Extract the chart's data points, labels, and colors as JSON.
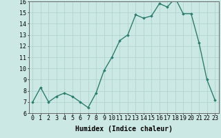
{
  "x": [
    0,
    1,
    2,
    3,
    4,
    5,
    6,
    7,
    8,
    9,
    10,
    11,
    12,
    13,
    14,
    15,
    16,
    17,
    18,
    19,
    20,
    21,
    22,
    23
  ],
  "y": [
    7.0,
    8.3,
    7.0,
    7.5,
    7.8,
    7.5,
    7.0,
    6.5,
    7.8,
    9.8,
    11.0,
    12.5,
    13.0,
    14.8,
    14.5,
    14.7,
    15.8,
    15.5,
    16.3,
    14.9,
    14.9,
    12.3,
    9.0,
    7.2
  ],
  "xlabel": "Humidex (Indice chaleur)",
  "ylim": [
    6,
    16
  ],
  "yticks": [
    6,
    7,
    8,
    9,
    10,
    11,
    12,
    13,
    14,
    15,
    16
  ],
  "xticks": [
    0,
    1,
    2,
    3,
    4,
    5,
    6,
    7,
    8,
    9,
    10,
    11,
    12,
    13,
    14,
    15,
    16,
    17,
    18,
    19,
    20,
    21,
    22,
    23
  ],
  "line_color": "#2d7d6e",
  "marker": "D",
  "marker_size": 1.8,
  "bg_color": "#cce8e4",
  "grid_color": "#b0d4ce",
  "line_width": 1.0,
  "xlabel_fontsize": 7,
  "tick_fontsize": 6
}
